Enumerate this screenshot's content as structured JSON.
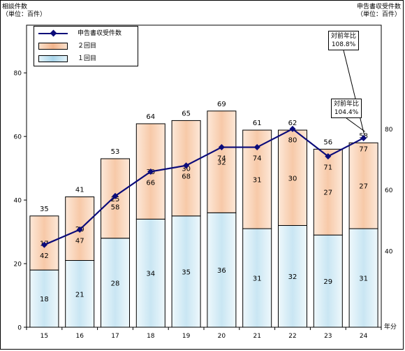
{
  "header": {
    "left_title": "相談件数",
    "left_unit": "（単位：百件）",
    "right_title": "申告書収受件数",
    "right_unit": "（単位：百件）"
  },
  "legend": {
    "line_label": "申告書収受件数",
    "second_label": "２回目",
    "first_label": "１回目"
  },
  "callouts": {
    "line": {
      "label": "対前年比",
      "value": "108.8%"
    },
    "bar": {
      "label": "対前年比",
      "value": "104.4%"
    }
  },
  "colors": {
    "first_fill": "#c9e6f3",
    "second_fill": "#f7c9a8",
    "line": "#0b0b7a"
  },
  "chart_data": {
    "type": "bar",
    "stacked": true,
    "categories": [
      "15",
      "16",
      "17",
      "18",
      "19",
      "20",
      "21",
      "22",
      "23",
      "24"
    ],
    "x_unit_label": "年分",
    "series": [
      {
        "name": "１回目",
        "values": [
          18,
          21,
          28,
          34,
          35,
          36,
          31,
          32,
          29,
          31
        ]
      },
      {
        "name": "２回目",
        "values": [
          17,
          20,
          25,
          30,
          30,
          32,
          31,
          30,
          27,
          27
        ]
      }
    ],
    "totals": [
      35,
      41,
      53,
      64,
      65,
      69,
      61,
      62,
      56,
      58
    ],
    "ylim": [
      0,
      95
    ],
    "yticks": [
      "0",
      "20",
      "40",
      "60",
      "80"
    ],
    "line_series": {
      "name": "申告書収受件数",
      "values": [
        42,
        47,
        58,
        66,
        68,
        74,
        74,
        80,
        71,
        77
      ],
      "ylim": [
        15,
        114
      ],
      "yticks": [
        "40",
        "60",
        "80"
      ]
    }
  }
}
